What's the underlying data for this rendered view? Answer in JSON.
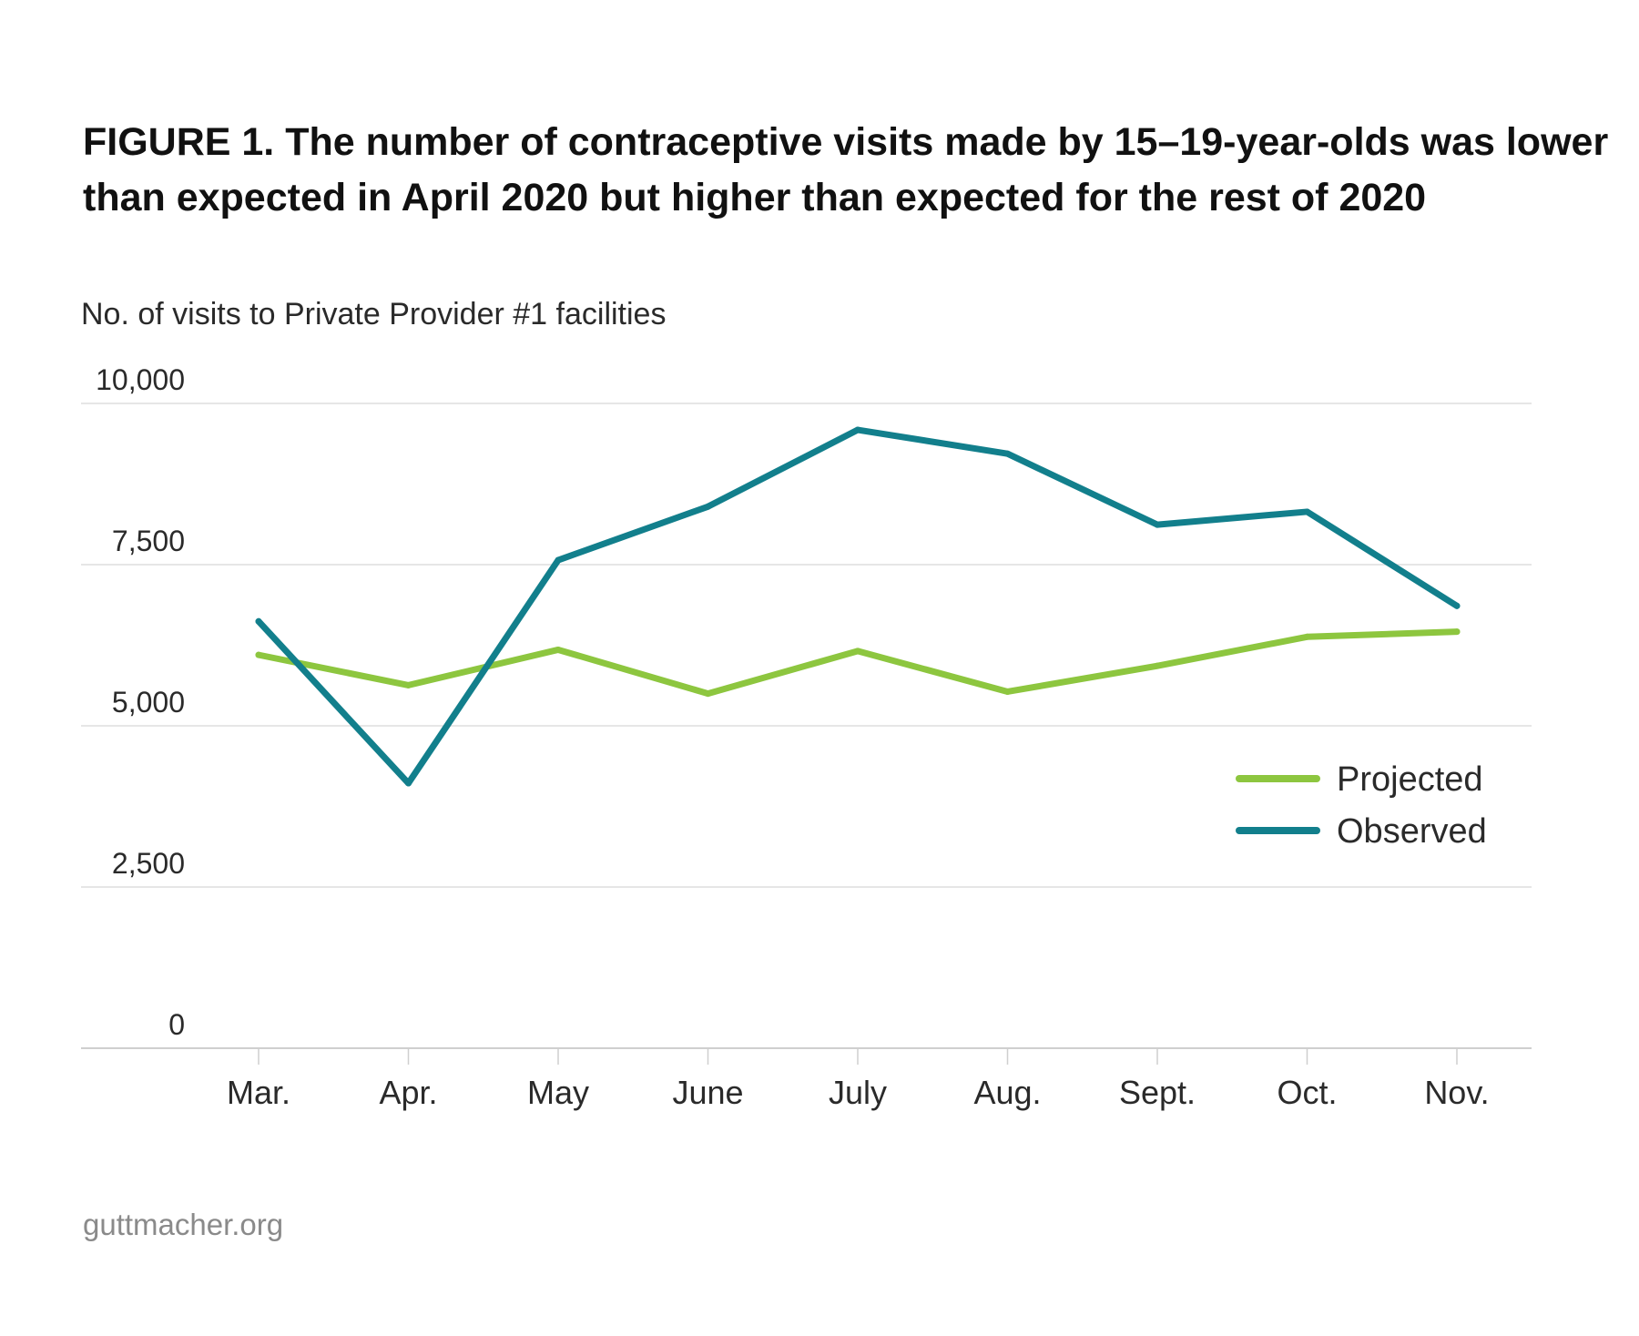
{
  "title": "FIGURE 1. The number of contraceptive visits made by 15–19-year-olds was lower than expected in April 2020 but higher than expected for the rest of 2020",
  "subtitle": "No. of visits to Private Provider #1 facilities",
  "source": "guttmacher.org",
  "chart_data": {
    "type": "line",
    "title": "FIGURE 1. The number of contraceptive visits made by 15–19-year-olds was lower than expected in April 2020 but higher than expected for the rest of 2020",
    "ylabel": "No. of visits to Private Provider #1 facilities",
    "xlabel": "",
    "categories": [
      "Mar.",
      "Apr.",
      "May",
      "June",
      "July",
      "Aug.",
      "Sept.",
      "Oct.",
      "Nov."
    ],
    "ylim": [
      0,
      10000
    ],
    "yticks": [
      0,
      2500,
      5000,
      7500,
      10000
    ],
    "ytick_labels": [
      "0",
      "2,500",
      "5,000",
      "7,500",
      "10,000"
    ],
    "grid": true,
    "legend_position": "right",
    "series": [
      {
        "name": "Projected",
        "color": "#8dc63f",
        "values": [
          6100,
          5630,
          6180,
          5500,
          6160,
          5530,
          5930,
          6380,
          6460
        ]
      },
      {
        "name": "Observed",
        "color": "#127f8c",
        "values": [
          6620,
          4110,
          7570,
          8400,
          9590,
          9220,
          8120,
          8320,
          6860
        ]
      }
    ]
  }
}
